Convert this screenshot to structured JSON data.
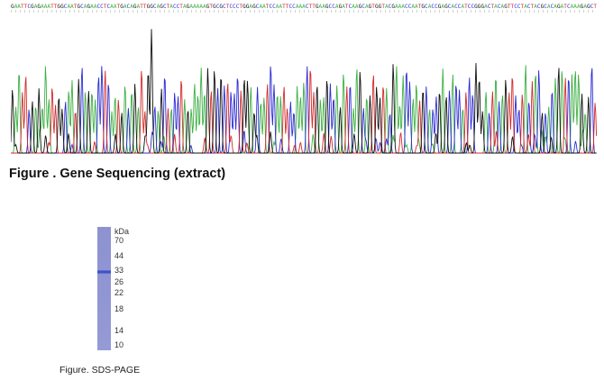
{
  "sequence": {
    "bases": "GAATTCGAGAAATTGGCAATGCAGAACCTCAATGACAGATTGGCAGCTACCTAGAAAAAGTGCGCTCCCTGGAGCAATCCAATTCCAAACTTGAAGCCAGATCAAGCAGTGGTACGAAACCAATGCACCGAGCACCATCCGGGACTACAGTTCCTACTACGCACAGATCAAAGAGCT",
    "caption": "Figure . Gene Sequencing (extract)"
  },
  "trace_colors": {
    "A": "#3cb043",
    "C": "#2b2bd6",
    "G": "#111111",
    "T": "#d42a2a"
  },
  "gel": {
    "unit": "kDa",
    "markers": [
      "70",
      "44",
      "33",
      "26",
      "22",
      "18",
      "14",
      "10"
    ],
    "caption": "Figure. SDS-PAGE"
  }
}
